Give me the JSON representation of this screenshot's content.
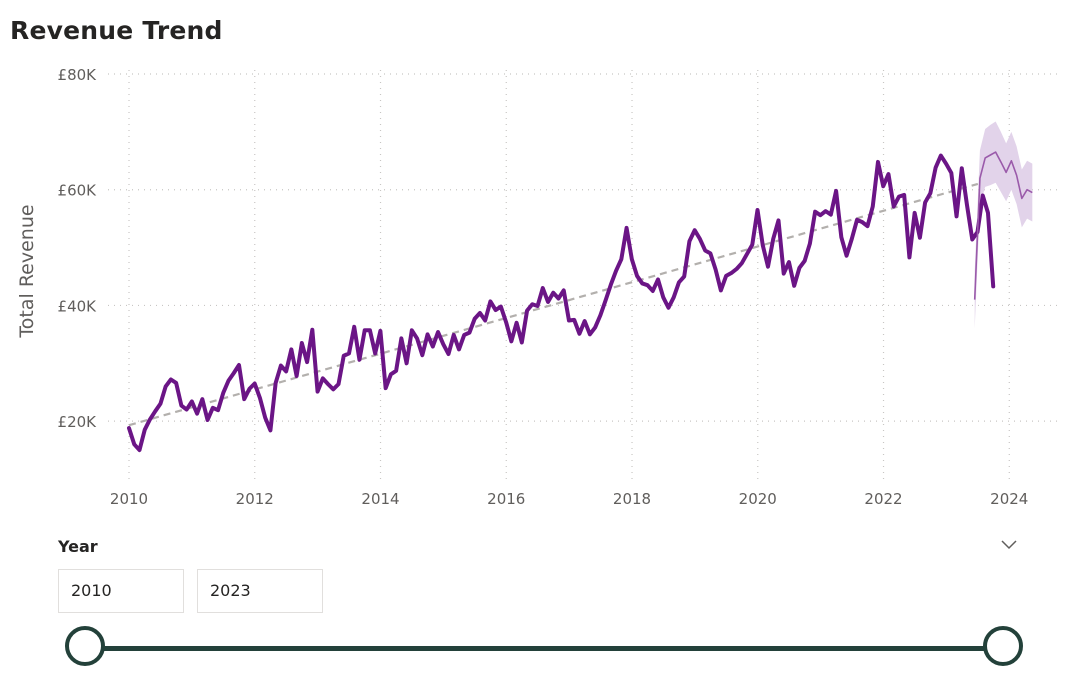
{
  "title": "Revenue Trend",
  "colors": {
    "actual": "#6b1586",
    "forecast": "#9a5aaa",
    "forecast_band": "#e2d3ea",
    "trend": "#b3b0ad",
    "grid": "#c8c6c4",
    "slider": "#23413a"
  },
  "chart_data": {
    "type": "line",
    "title": "Revenue Trend",
    "xlabel": "",
    "ylabel": "Total Revenue",
    "xlim": [
      2010,
      2024.25
    ],
    "ylim": [
      10000,
      80000
    ],
    "x_ticks": [
      {
        "value": 2010,
        "label": "2010"
      },
      {
        "value": 2012,
        "label": "2012"
      },
      {
        "value": 2014,
        "label": "2014"
      },
      {
        "value": 2016,
        "label": "2016"
      },
      {
        "value": 2018,
        "label": "2018"
      },
      {
        "value": 2020,
        "label": "2020"
      },
      {
        "value": 2022,
        "label": "2022"
      },
      {
        "value": 2024,
        "label": "2024"
      }
    ],
    "y_ticks": [
      {
        "value": 20000,
        "label": "£20K"
      },
      {
        "value": 40000,
        "label": "£40K"
      },
      {
        "value": 60000,
        "label": "£60K"
      },
      {
        "value": 80000,
        "label": "£80K"
      }
    ],
    "grid": true,
    "actual": {
      "start_year": 2010,
      "step": 0.0833,
      "values": [
        18800,
        16000,
        15000,
        18500,
        20300,
        21700,
        23000,
        26000,
        27200,
        26600,
        22700,
        22000,
        23400,
        21300,
        23800,
        20200,
        22300,
        21900,
        24900,
        27000,
        28300,
        29700,
        23800,
        25600,
        26500,
        24000,
        20600,
        18400,
        26600,
        29600,
        28600,
        32400,
        27800,
        33500,
        30200,
        35800,
        25100,
        27400,
        26400,
        25500,
        26400,
        31300,
        31700,
        36300,
        30600,
        35700,
        35700,
        31700,
        35600,
        25700,
        28100,
        28700,
        34300,
        30000,
        35700,
        34300,
        31400,
        35000,
        32900,
        35400,
        33300,
        31600,
        34900,
        32400,
        34900,
        35300,
        37700,
        38700,
        37400,
        40700,
        39200,
        39800,
        37100,
        33800,
        37000,
        33600,
        39100,
        40200,
        39900,
        43000,
        40600,
        42200,
        41200,
        42600,
        37400,
        37500,
        35100,
        37300,
        35000,
        36200,
        38300,
        40900,
        43600,
        46000,
        48000,
        53400,
        48000,
        45100,
        43800,
        43500,
        42500,
        44500,
        41400,
        39600,
        41400,
        44000,
        45000,
        51100,
        53000,
        51500,
        49500,
        49000,
        46200,
        42600,
        45100,
        45600,
        46300,
        47300,
        48900,
        50500,
        56500,
        50400,
        46700,
        51500,
        54700,
        45500,
        47500,
        43400,
        46500,
        47700,
        50700,
        56200,
        55600,
        56300,
        55700,
        59800,
        51800,
        48600,
        51500,
        54800,
        54400,
        53700,
        57100,
        64800,
        60600,
        62700,
        57100,
        58800,
        59100,
        48300,
        56000,
        51700,
        57800,
        59400,
        63800,
        65900,
        64500,
        62900,
        55400,
        63700,
        57300,
        51400,
        52700,
        59000,
        56000,
        43300
      ]
    },
    "forecast": {
      "start_year": 2023.45,
      "step": 0.0833,
      "values": [
        41000,
        62000,
        65500,
        66000,
        66500,
        64800,
        63000,
        65000,
        62500,
        58500,
        60000,
        59500
      ],
      "upper": [
        46000,
        66800,
        70500,
        71200,
        71800,
        70000,
        68000,
        70000,
        67500,
        63500,
        65000,
        64500
      ],
      "lower": [
        36000,
        57200,
        60500,
        60800,
        61200,
        59600,
        58000,
        60000,
        57500,
        53500,
        55000,
        54500
      ]
    },
    "trendline": {
      "x": [
        2010,
        2023.5
      ],
      "y": [
        19300,
        61000
      ]
    }
  },
  "slicer": {
    "label": "Year",
    "start_value": "2010",
    "end_value": "2023",
    "range_fraction": [
      0,
      1
    ]
  }
}
